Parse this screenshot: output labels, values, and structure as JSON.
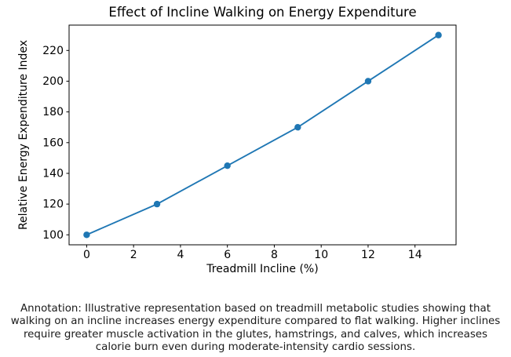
{
  "chart_data": {
    "type": "line",
    "title": "Effect of Incline Walking on Energy Expenditure",
    "xlabel": "Treadmill Incline (%)",
    "ylabel": "Relative Energy Expenditure Index",
    "x": [
      0,
      3,
      6,
      9,
      12,
      15
    ],
    "y": [
      100,
      120,
      145,
      170,
      200,
      230
    ],
    "xticks": [
      0,
      2,
      4,
      6,
      8,
      10,
      12,
      14
    ],
    "yticks": [
      100,
      120,
      140,
      160,
      180,
      200,
      220
    ],
    "xlim": [
      -0.75,
      15.75
    ],
    "ylim": [
      93.5,
      236.5
    ],
    "line_color": "#1f77b4",
    "marker": "circle",
    "grid": false,
    "legend": "none"
  },
  "annotation": "Annotation: Illustrative representation based on treadmill metabolic studies showing that walking on an incline increases energy expenditure compared to flat walking. Higher inclines require greater muscle activation in the glutes, hamstrings, and calves, which increases calorie burn even during moderate-intensity cardio sessions."
}
